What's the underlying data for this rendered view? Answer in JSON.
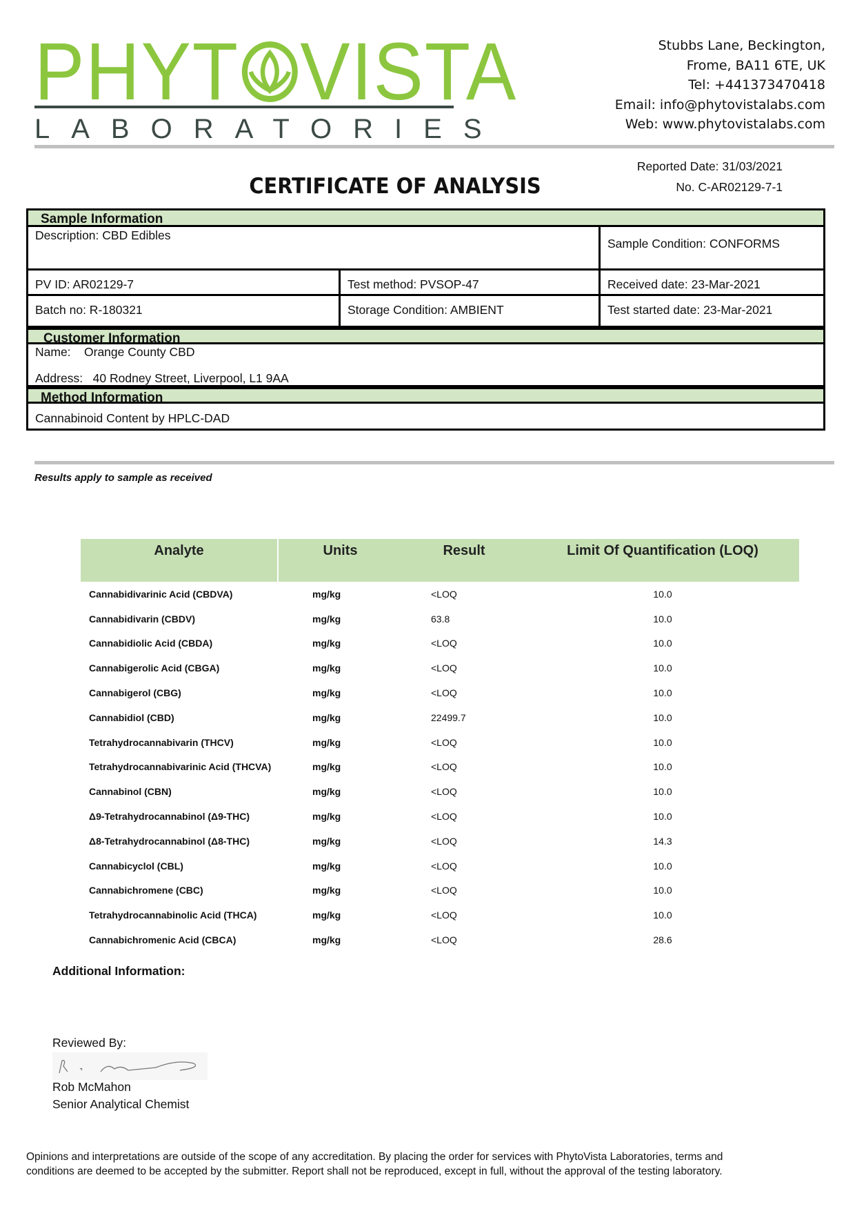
{
  "logo": {
    "name": "PHYTOVISTA",
    "subtitle": "LABORATORIES",
    "brand_color": "#8cc63f"
  },
  "contact": [
    "Stubbs Lane, Beckington,",
    "Frome, BA11 6TE, UK",
    "Tel: +441373470418",
    "Email: info@phytovistalabs.com",
    "Web: www.phytovistalabs.com"
  ],
  "report": {
    "reported_date": "Reported Date: 31/03/2021",
    "number": "No. C-AR02129-7-1",
    "title": "CERTIFICATE OF ANALYSIS"
  },
  "sample": {
    "heading": "Sample Information",
    "description": "Description: CBD Edibles",
    "condition": "Sample Condition: CONFORMS",
    "pv_id": "PV ID: AR02129-7",
    "test_method": "Test method: PVSOP-47",
    "received": "Received date: 23-Mar-2021",
    "batch": "Batch no: R-180321",
    "storage": "Storage Condition: AMBIENT",
    "test_started": "Test started date: 23-Mar-2021"
  },
  "customer": {
    "heading": "Customer Information",
    "name_label": "Name:",
    "name": "Orange County CBD",
    "address_label": "Address:",
    "address": "40 Rodney Street, Liverpool, L1 9AA"
  },
  "method": {
    "heading": "Method Information",
    "text": "Cannabinoid Content by HPLC-DAD"
  },
  "results_note": "Results apply to sample as received",
  "results": {
    "headers": [
      "Analyte",
      "Units",
      "Result",
      "Limit Of Quantification (LOQ)"
    ],
    "rows": [
      [
        "Cannabidivarinic Acid (CBDVA)",
        "mg/kg",
        "<LOQ",
        "10.0"
      ],
      [
        "Cannabidivarin (CBDV)",
        "mg/kg",
        "63.8",
        "10.0"
      ],
      [
        "Cannabidiolic Acid (CBDA)",
        "mg/kg",
        "<LOQ",
        "10.0"
      ],
      [
        "Cannabigerolic Acid (CBGA)",
        "mg/kg",
        "<LOQ",
        "10.0"
      ],
      [
        "Cannabigerol (CBG)",
        "mg/kg",
        "<LOQ",
        "10.0"
      ],
      [
        "Cannabidiol (CBD)",
        "mg/kg",
        "22499.7",
        "10.0"
      ],
      [
        "Tetrahydrocannabivarin (THCV)",
        "mg/kg",
        "<LOQ",
        "10.0"
      ],
      [
        "Tetrahydrocannabivarinic Acid (THCVA)",
        "mg/kg",
        "<LOQ",
        "10.0"
      ],
      [
        "Cannabinol (CBN)",
        "mg/kg",
        "<LOQ",
        "10.0"
      ],
      [
        "Δ9-Tetrahydrocannabinol (Δ9-THC)",
        "mg/kg",
        "<LOQ",
        "10.0"
      ],
      [
        "Δ8-Tetrahydrocannabinol (Δ8-THC)",
        "mg/kg",
        "<LOQ",
        "14.3"
      ],
      [
        "Cannabicyclol (CBL)",
        "mg/kg",
        "<LOQ",
        "10.0"
      ],
      [
        "Cannabichromene (CBC)",
        "mg/kg",
        "<LOQ",
        "10.0"
      ],
      [
        "Tetrahydrocannabinolic Acid (THCA)",
        "mg/kg",
        "<LOQ",
        "10.0"
      ],
      [
        "Cannabichromenic Acid (CBCA)",
        "mg/kg",
        "<LOQ",
        "28.6"
      ]
    ]
  },
  "additional_info": "Additional Information:",
  "review": {
    "label": "Reviewed By:",
    "name": "Rob McMahon",
    "role": "Senior Analytical Chemist"
  },
  "footer": "Opinions and interpretations are outside of the scope of any accreditation. By placing the order for services with PhytoVista Laboratories, terms and conditions are deemed to be accepted by the submitter. Report shall not be reproduced, except in full, without the approval of the testing laboratory."
}
